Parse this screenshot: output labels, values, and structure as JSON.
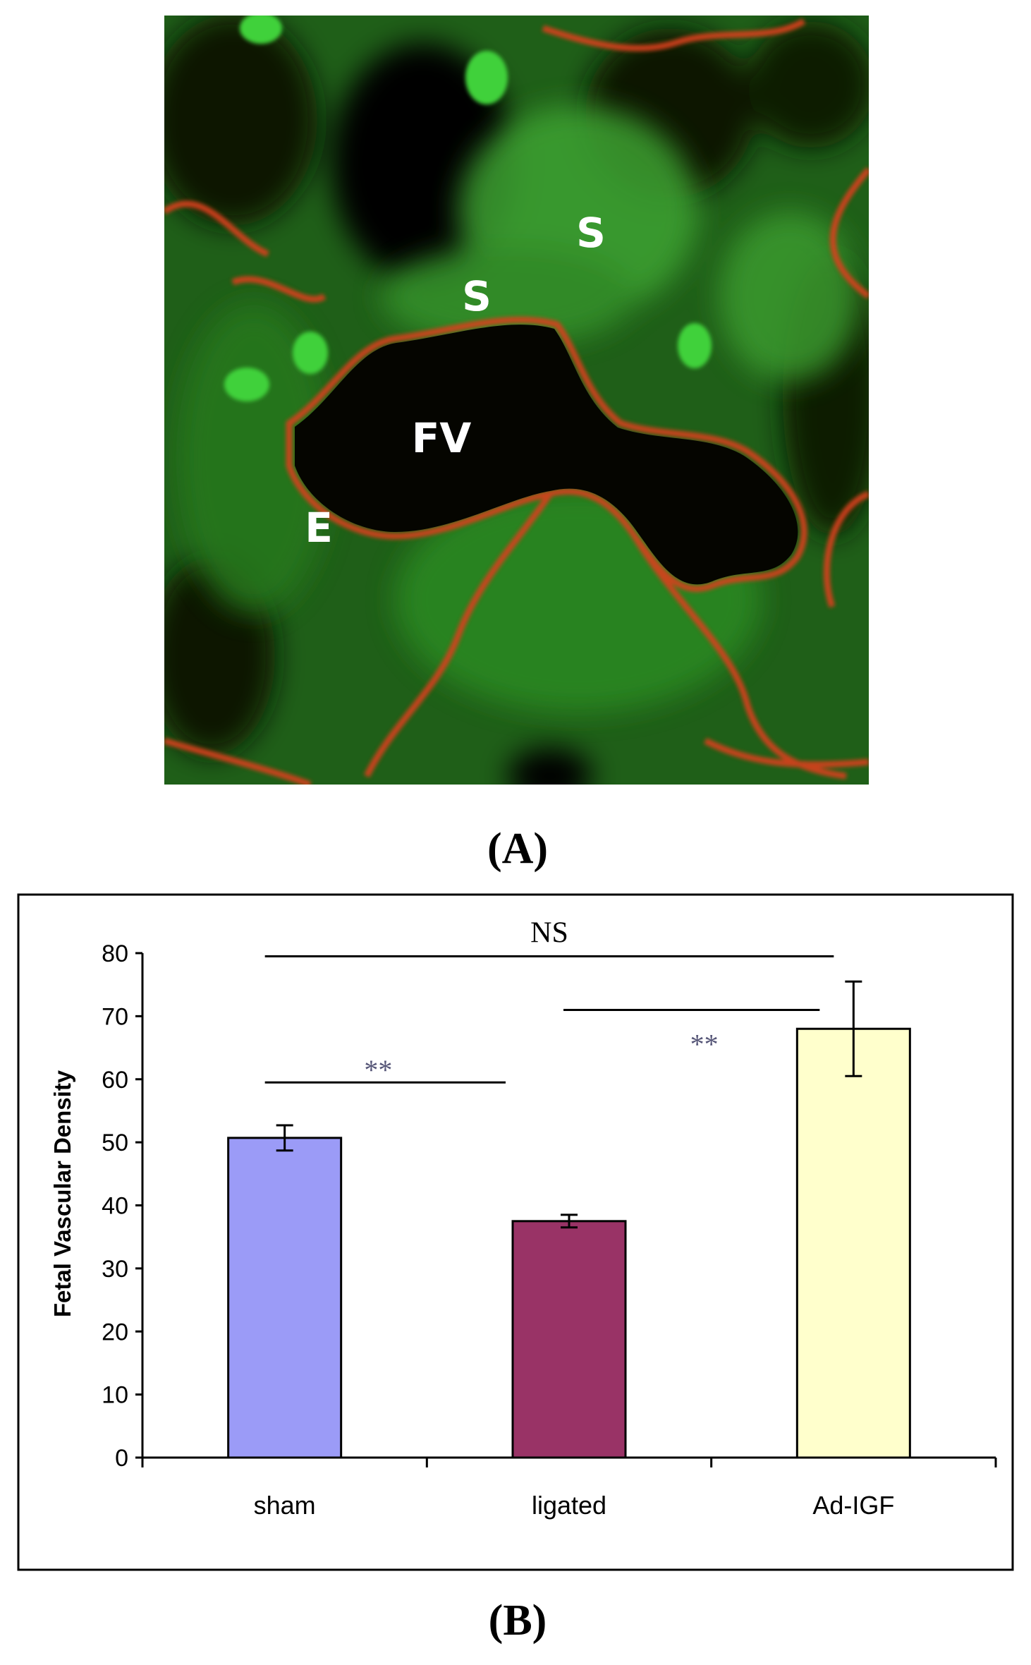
{
  "panels": {
    "a_label": "(A)",
    "b_label": "(B)"
  },
  "micrograph": {
    "labels": [
      {
        "id": "s1",
        "text": "S"
      },
      {
        "id": "s2",
        "text": "S"
      },
      {
        "id": "fv",
        "text": "FV"
      },
      {
        "id": "e",
        "text": "E"
      }
    ],
    "colors": {
      "stain_green": "#2c8a22",
      "stain_red": "#d8401a",
      "lumen": "#050500",
      "label": "#ffffff"
    }
  },
  "chart_data": {
    "type": "bar",
    "categories": [
      "sham",
      "ligated",
      "Ad-IGF"
    ],
    "values": [
      50.7,
      37.5,
      68
    ],
    "errors": [
      2,
      1,
      7.5
    ],
    "bar_colors": [
      "#9b9bf7",
      "#993366",
      "#ffffcc"
    ],
    "title": "",
    "xlabel": "",
    "ylabel": "Fetal Vascular Density",
    "ylim": [
      0,
      80
    ],
    "yticks": [
      0,
      10,
      20,
      30,
      40,
      50,
      60,
      70,
      80
    ],
    "grid": false,
    "significance": [
      {
        "from": "sham",
        "to": "Ad-IGF",
        "label": "NS",
        "level": 79.5
      },
      {
        "from": "sham",
        "to": "ligated",
        "label": "**",
        "level": 59.5
      },
      {
        "from": "ligated",
        "to": "Ad-IGF",
        "label": "**",
        "level": 71
      }
    ]
  }
}
